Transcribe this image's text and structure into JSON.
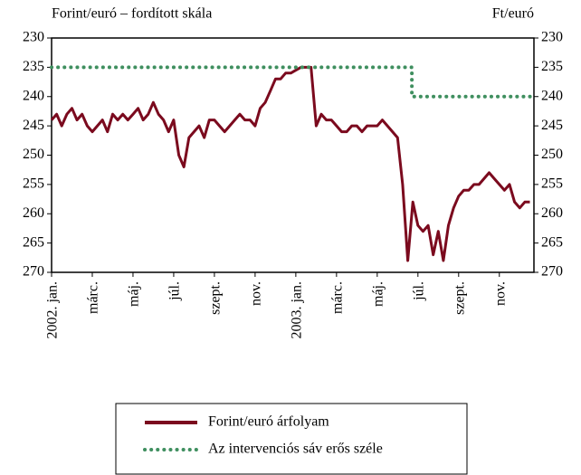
{
  "chart_data": {
    "type": "line",
    "title": "Forint/euró – fordított skála",
    "y2_label": "Ft/euró",
    "xlim": [
      0,
      23.7
    ],
    "xticks": [
      {
        "value": 0,
        "label": "2002. jan."
      },
      {
        "value": 2,
        "label": "márc."
      },
      {
        "value": 4,
        "label": "máj."
      },
      {
        "value": 6,
        "label": "júl."
      },
      {
        "value": 8,
        "label": "szept."
      },
      {
        "value": 10,
        "label": "nov."
      },
      {
        "value": 12,
        "label": "2003. jan."
      },
      {
        "value": 14,
        "label": "márc."
      },
      {
        "value": 16,
        "label": "máj."
      },
      {
        "value": 18,
        "label": "júl."
      },
      {
        "value": 20,
        "label": "szept."
      },
      {
        "value": 22,
        "label": "nov."
      }
    ],
    "ylim": [
      230,
      270
    ],
    "y_inverted": true,
    "yticks": [
      230,
      235,
      240,
      245,
      250,
      255,
      260,
      265,
      270
    ],
    "y2lim": [
      230,
      270
    ],
    "y2ticks": [
      230,
      235,
      240,
      245,
      250,
      255,
      260,
      265,
      270
    ],
    "series": [
      {
        "name": "Forint/euró árfolyam",
        "color": "#7b0a1e",
        "style": "solid",
        "x": [
          0,
          0.25,
          0.5,
          0.75,
          1,
          1.25,
          1.5,
          1.75,
          2,
          2.25,
          2.5,
          2.75,
          3,
          3.25,
          3.5,
          3.75,
          4,
          4.25,
          4.5,
          4.75,
          5,
          5.25,
          5.5,
          5.75,
          6,
          6.25,
          6.5,
          6.75,
          7,
          7.25,
          7.5,
          7.75,
          8,
          8.25,
          8.5,
          8.75,
          9,
          9.25,
          9.5,
          9.75,
          10,
          10.25,
          10.5,
          10.75,
          11,
          11.25,
          11.5,
          11.75,
          12,
          12.25,
          12.5,
          12.75,
          13,
          13.25,
          13.5,
          13.75,
          14,
          14.25,
          14.5,
          14.75,
          15,
          15.25,
          15.5,
          15.75,
          16,
          16.25,
          16.5,
          16.75,
          17,
          17.25,
          17.5,
          17.75,
          18,
          18.25,
          18.5,
          18.75,
          19,
          19.25,
          19.5,
          19.75,
          20,
          20.25,
          20.5,
          20.75,
          21,
          21.25,
          21.5,
          21.75,
          22,
          22.25,
          22.5,
          22.75,
          23,
          23.25,
          23.5
        ],
        "values": [
          244,
          243,
          245,
          243,
          242,
          244,
          243,
          245,
          246,
          245,
          244,
          246,
          243,
          244,
          243,
          244,
          243,
          242,
          244,
          243,
          241,
          243,
          244,
          246,
          244,
          250,
          252,
          247,
          246,
          245,
          247,
          244,
          244,
          245,
          246,
          245,
          244,
          243,
          244,
          244,
          245,
          242,
          241,
          239,
          237,
          237,
          236,
          236,
          235.5,
          235,
          235,
          235,
          245,
          243,
          244,
          244,
          245,
          246,
          246,
          245,
          245,
          246,
          245,
          245,
          245,
          244,
          245,
          246,
          247,
          255,
          268,
          258,
          262,
          263,
          262,
          267,
          263,
          268,
          262,
          259,
          257,
          256,
          256,
          255,
          255,
          254,
          253,
          254,
          255,
          256,
          255,
          258,
          259,
          258,
          258
        ]
      },
      {
        "name": "Az intervenciós sáv erős széle",
        "color": "#3f8f5f",
        "style": "dotted",
        "x": [
          0,
          17.7,
          17.7,
          23.7
        ],
        "values": [
          235,
          235,
          240,
          240
        ]
      }
    ]
  }
}
